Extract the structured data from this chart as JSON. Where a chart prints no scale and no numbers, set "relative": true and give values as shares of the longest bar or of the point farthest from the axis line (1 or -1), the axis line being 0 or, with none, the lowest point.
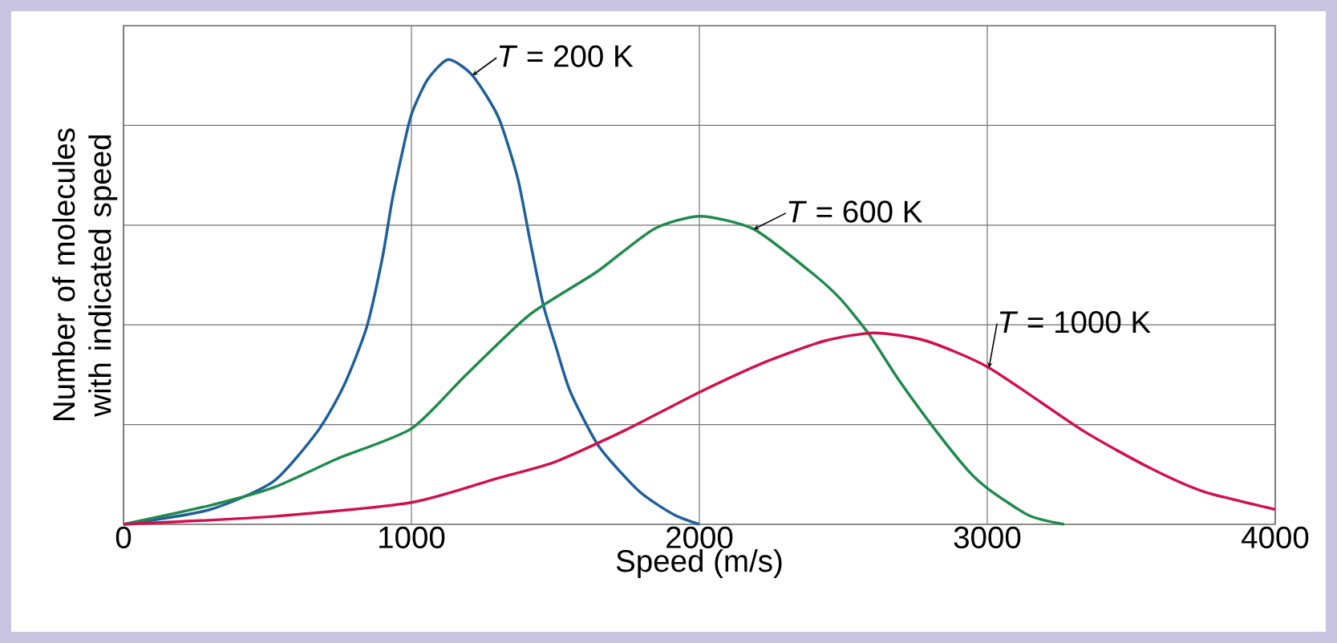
{
  "chart_data": {
    "type": "line",
    "relative": true,
    "xlabel": "Speed (m/s)",
    "ylabel": "Number of molecules with indicated speed",
    "xlim": [
      0,
      4000
    ],
    "xticks": [
      0,
      1000,
      2000,
      3000,
      4000
    ],
    "grid": true,
    "marker": "none",
    "line_style": "solid",
    "series": [
      {
        "color": "#1f5f9a",
        "x": [
          0,
          296,
          520,
          676,
          765,
          844,
          899,
          933,
          966,
          1000,
          1056,
          1128,
          1212,
          1302,
          1369,
          1413,
          1458,
          1500,
          1552,
          1652,
          1791,
          1911,
          2000
        ],
        "values": [
          0,
          0.031,
          0.092,
          0.202,
          0.298,
          0.423,
          0.573,
          0.697,
          0.794,
          0.882,
          0.957,
          1,
          0.966,
          0.876,
          0.745,
          0.607,
          0.472,
          0.386,
          0.285,
          0.167,
          0.071,
          0.021,
          0
        ]
      },
      {
        "color": "#1f8a4c",
        "x": [
          0,
          296,
          520,
          742,
          1000,
          1187,
          1410,
          1643,
          1841,
          2003,
          2189,
          2387,
          2487,
          2588,
          2688,
          2816,
          2936,
          3006,
          3145,
          3267
        ],
        "values": [
          0,
          0.04,
          0.079,
          0.141,
          0.206,
          0.32,
          0.451,
          0.543,
          0.635,
          0.663,
          0.635,
          0.543,
          0.487,
          0.41,
          0.315,
          0.206,
          0.114,
          0.075,
          0.019,
          0
        ]
      },
      {
        "color": "#d0104c",
        "x": [
          0,
          520,
          1000,
          1298,
          1493,
          1741,
          2003,
          2240,
          2437,
          2607,
          2786,
          3006,
          3331,
          3563,
          3749,
          4000
        ],
        "values": [
          0,
          0.017,
          0.047,
          0.099,
          0.133,
          0.202,
          0.285,
          0.352,
          0.395,
          0.412,
          0.395,
          0.337,
          0.202,
          0.122,
          0.071,
          0.032
        ]
      }
    ],
    "annotations": [
      "*T* = 200 K",
      "*T* = 600 K",
      "*T* = 1000 K"
    ]
  }
}
